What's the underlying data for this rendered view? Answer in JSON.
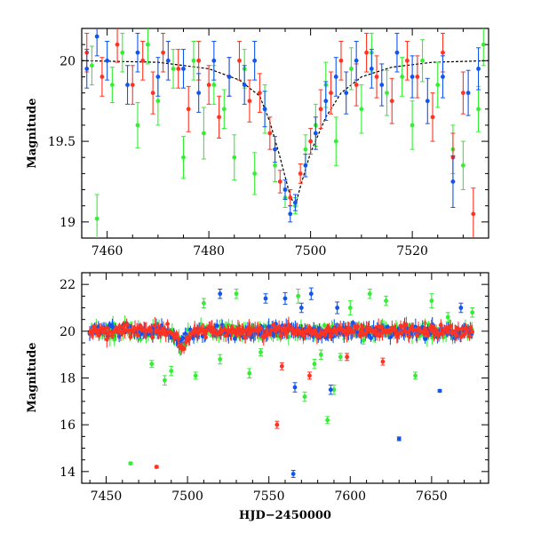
{
  "colors": {
    "green": "#33ee33",
    "red": "#ff3322",
    "blue": "#1155ee",
    "model": "#000000"
  },
  "chart_data": [
    {
      "type": "scatter",
      "name": "top-panel",
      "xlabel": "",
      "ylabel": "Magnitude",
      "xlim": [
        7455,
        7535
      ],
      "ylim": [
        20.2,
        18.9
      ],
      "y_inverted": true,
      "xticks": [
        7460,
        7480,
        7500,
        7520
      ],
      "yticks": [
        19,
        19.5,
        20
      ],
      "grid": false,
      "error_bars": true,
      "model_curve": {
        "style": "dashed",
        "color": "#000000",
        "x": [
          7455,
          7470,
          7480,
          7486,
          7490,
          7492,
          7494,
          7496,
          7497,
          7498,
          7500,
          7503,
          7506,
          7510,
          7516,
          7524,
          7535
        ],
        "y": [
          20.0,
          19.99,
          19.95,
          19.88,
          19.78,
          19.62,
          19.4,
          19.16,
          19.1,
          19.22,
          19.43,
          19.65,
          19.8,
          19.9,
          19.96,
          19.99,
          20.0
        ]
      },
      "series": [
        {
          "color": "green",
          "points": [
            [
              7457,
              19.97,
              0.12
            ],
            [
              7458,
              19.02,
              0.15
            ],
            [
              7461,
              19.85,
              0.11
            ],
            [
              7463,
              20.05,
              0.12
            ],
            [
              7466,
              19.6,
              0.14
            ],
            [
              7468,
              20.1,
              0.12
            ],
            [
              7470,
              19.75,
              0.15
            ],
            [
              7473,
              19.95,
              0.12
            ],
            [
              7475,
              19.4,
              0.13
            ],
            [
              7477,
              20.0,
              0.12
            ],
            [
              7479,
              19.55,
              0.16
            ],
            [
              7481,
              19.85,
              0.12
            ],
            [
              7483,
              19.7,
              0.12
            ],
            [
              7485,
              19.4,
              0.14
            ],
            [
              7487,
              19.95,
              0.12
            ],
            [
              7489,
              19.3,
              0.13
            ],
            [
              7491,
              19.7,
              0.15
            ],
            [
              7493,
              19.35,
              0.1
            ],
            [
              7495,
              19.15,
              0.06
            ],
            [
              7497,
              19.1,
              0.05
            ],
            [
              7499,
              19.45,
              0.09
            ],
            [
              7501,
              19.6,
              0.13
            ],
            [
              7503,
              19.85,
              0.14
            ],
            [
              7505,
              19.5,
              0.15
            ],
            [
              7508,
              19.95,
              0.13
            ],
            [
              7510,
              19.7,
              0.15
            ],
            [
              7512,
              20.05,
              0.12
            ],
            [
              7515,
              19.8,
              0.14
            ],
            [
              7518,
              19.9,
              0.12
            ],
            [
              7520,
              19.6,
              0.15
            ],
            [
              7522,
              20.0,
              0.13
            ],
            [
              7525,
              19.85,
              0.14
            ],
            [
              7528,
              19.45,
              0.15
            ],
            [
              7530,
              19.35,
              0.15
            ],
            [
              7533,
              19.7,
              0.14
            ],
            [
              7534,
              20.1,
              0.13
            ]
          ]
        },
        {
          "color": "red",
          "points": [
            [
              7456,
              20.05,
              0.12
            ],
            [
              7459,
              19.9,
              0.12
            ],
            [
              7462,
              20.1,
              0.11
            ],
            [
              7465,
              19.85,
              0.12
            ],
            [
              7467,
              20.0,
              0.12
            ],
            [
              7469,
              19.8,
              0.13
            ],
            [
              7471,
              20.05,
              0.12
            ],
            [
              7474,
              19.95,
              0.12
            ],
            [
              7476,
              19.7,
              0.14
            ],
            [
              7478,
              20.0,
              0.12
            ],
            [
              7480,
              19.85,
              0.12
            ],
            [
              7482,
              19.65,
              0.13
            ],
            [
              7484,
              19.9,
              0.12
            ],
            [
              7486,
              20.0,
              0.12
            ],
            [
              7488,
              19.75,
              0.13
            ],
            [
              7490,
              19.8,
              0.12
            ],
            [
              7492,
              19.55,
              0.1
            ],
            [
              7494,
              19.25,
              0.07
            ],
            [
              7496,
              19.15,
              0.05
            ],
            [
              7498,
              19.3,
              0.06
            ],
            [
              7500,
              19.5,
              0.08
            ],
            [
              7502,
              19.7,
              0.12
            ],
            [
              7504,
              19.8,
              0.13
            ],
            [
              7506,
              20.0,
              0.12
            ],
            [
              7509,
              19.85,
              0.13
            ],
            [
              7511,
              20.05,
              0.12
            ],
            [
              7513,
              19.9,
              0.13
            ],
            [
              7516,
              19.75,
              0.14
            ],
            [
              7519,
              20.0,
              0.12
            ],
            [
              7521,
              19.9,
              0.13
            ],
            [
              7524,
              19.65,
              0.15
            ],
            [
              7526,
              20.05,
              0.12
            ],
            [
              7528,
              19.4,
              0.15
            ],
            [
              7530,
              19.8,
              0.13
            ],
            [
              7532,
              19.05,
              0.16
            ]
          ]
        },
        {
          "color": "blue",
          "points": [
            [
              7456,
              19.95,
              0.12
            ],
            [
              7458,
              20.15,
              0.12
            ],
            [
              7460,
              20.0,
              0.12
            ],
            [
              7464,
              19.85,
              0.12
            ],
            [
              7466,
              20.05,
              0.12
            ],
            [
              7470,
              19.9,
              0.12
            ],
            [
              7472,
              20.0,
              0.12
            ],
            [
              7475,
              19.95,
              0.12
            ],
            [
              7478,
              19.8,
              0.12
            ],
            [
              7481,
              20.0,
              0.12
            ],
            [
              7484,
              19.9,
              0.12
            ],
            [
              7487,
              19.85,
              0.12
            ],
            [
              7489,
              20.0,
              0.12
            ],
            [
              7491,
              19.7,
              0.11
            ],
            [
              7493,
              19.45,
              0.08
            ],
            [
              7495,
              19.2,
              0.06
            ],
            [
              7496,
              19.05,
              0.05
            ],
            [
              7497,
              19.12,
              0.05
            ],
            [
              7499,
              19.35,
              0.07
            ],
            [
              7501,
              19.55,
              0.1
            ],
            [
              7503,
              19.75,
              0.12
            ],
            [
              7505,
              19.9,
              0.12
            ],
            [
              7507,
              19.8,
              0.13
            ],
            [
              7509,
              20.0,
              0.12
            ],
            [
              7512,
              19.95,
              0.12
            ],
            [
              7514,
              19.85,
              0.13
            ],
            [
              7517,
              20.05,
              0.12
            ],
            [
              7520,
              19.9,
              0.13
            ],
            [
              7523,
              19.75,
              0.14
            ],
            [
              7526,
              19.9,
              0.13
            ],
            [
              7528,
              19.25,
              0.16
            ],
            [
              7531,
              19.8,
              0.14
            ],
            [
              7533,
              19.95,
              0.13
            ]
          ]
        }
      ]
    },
    {
      "type": "scatter",
      "name": "bottom-panel",
      "xlabel": "HJD−2450000",
      "ylabel": "Magnitude",
      "xlim": [
        7435,
        7685
      ],
      "ylim": [
        22.5,
        13.5
      ],
      "y_inverted": true,
      "xticks": [
        7450,
        7500,
        7550,
        7600,
        7650
      ],
      "yticks": [
        14,
        16,
        18,
        20,
        22
      ],
      "grid": false,
      "error_bars": true,
      "series": [
        {
          "color": "green",
          "outliers": [
            [
              7465,
              14.35,
              0.05
            ],
            [
              7478,
              18.6,
              0.15
            ],
            [
              7486,
              17.9,
              0.2
            ],
            [
              7490,
              18.3,
              0.2
            ],
            [
              7505,
              18.1,
              0.15
            ],
            [
              7510,
              21.2,
              0.2
            ],
            [
              7520,
              18.8,
              0.2
            ],
            [
              7530,
              21.6,
              0.2
            ],
            [
              7538,
              18.2,
              0.2
            ],
            [
              7545,
              19.1,
              0.15
            ],
            [
              7568,
              21.5,
              0.3
            ],
            [
              7572,
              17.2,
              0.2
            ],
            [
              7578,
              18.6,
              0.2
            ],
            [
              7582,
              19.0,
              0.2
            ],
            [
              7586,
              16.2,
              0.15
            ],
            [
              7590,
              17.5,
              0.2
            ],
            [
              7594,
              18.9,
              0.15
            ],
            [
              7600,
              21.0,
              0.3
            ],
            [
              7608,
              19.6,
              0.15
            ],
            [
              7612,
              21.6,
              0.2
            ],
            [
              7622,
              21.3,
              0.2
            ],
            [
              7640,
              18.1,
              0.15
            ],
            [
              7650,
              21.3,
              0.3
            ],
            [
              7660,
              20.6,
              0.2
            ],
            [
              7675,
              20.8,
              0.2
            ]
          ]
        },
        {
          "color": "red",
          "outliers": [
            [
              7481,
              14.2,
              0.05
            ],
            [
              7555,
              16.0,
              0.15
            ],
            [
              7558,
              18.5,
              0.15
            ],
            [
              7575,
              18.1,
              0.15
            ],
            [
              7598,
              18.9,
              0.15
            ],
            [
              7620,
              18.7,
              0.15
            ]
          ]
        },
        {
          "color": "blue",
          "outliers": [
            [
              7565,
              13.9,
              0.15
            ],
            [
              7566,
              17.6,
              0.2
            ],
            [
              7560,
              21.4,
              0.25
            ],
            [
              7570,
              21.0,
              0.2
            ],
            [
              7576,
              21.6,
              0.25
            ],
            [
              7588,
              17.5,
              0.2
            ],
            [
              7592,
              21.0,
              0.25
            ],
            [
              7630,
              15.4,
              0.08
            ],
            [
              7655,
              17.45,
              0.05
            ],
            [
              7668,
              21.0,
              0.2
            ],
            [
              7548,
              21.4,
              0.2
            ],
            [
              7520,
              21.6,
              0.2
            ]
          ]
        }
      ],
      "baseline": {
        "magnitude": 20.0,
        "scatter": 0.25,
        "x_range": [
          7440,
          7675
        ]
      },
      "flare": {
        "center": 7496,
        "peak_magnitude": 19.1
      }
    }
  ]
}
